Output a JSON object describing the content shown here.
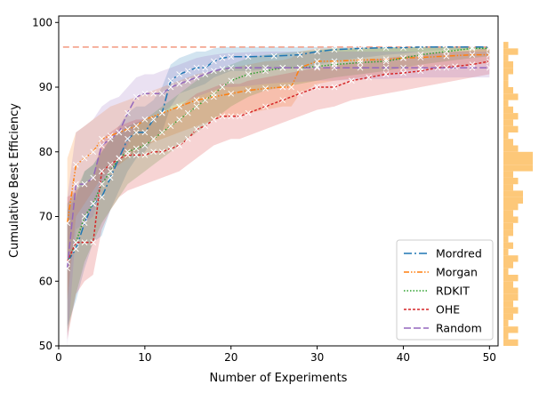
{
  "chart_data": {
    "type": "line",
    "xlabel": "Number of Experiments",
    "ylabel": "Cumulative Best Efficiency",
    "xlim": [
      0,
      51
    ],
    "ylim": [
      50,
      101
    ],
    "xticks": [
      0,
      10,
      20,
      30,
      40,
      50
    ],
    "yticks": [
      50,
      60,
      70,
      80,
      90,
      100
    ],
    "grid": false,
    "legend_position": "bottom-right",
    "reference_line": {
      "y": 96.2,
      "color": "#f4a08a",
      "style": "dashed"
    },
    "series": [
      {
        "name": "Mordred",
        "color": "#1f77b4",
        "dash": "9,3,2,3",
        "x": [
          1,
          2,
          3,
          4,
          5,
          6,
          7,
          8,
          9,
          10,
          11,
          12,
          13,
          14,
          15,
          16,
          17,
          18,
          19,
          20,
          22,
          25,
          28,
          30,
          32,
          35,
          38,
          40,
          42,
          45,
          48,
          50
        ],
        "y": [
          63,
          65,
          69,
          72,
          73,
          76,
          79,
          82,
          83,
          83,
          85,
          86,
          91,
          92,
          92.5,
          93,
          93,
          94,
          94.5,
          94.7,
          94.7,
          94.8,
          95,
          95.5,
          95.8,
          96,
          96.1,
          96.1,
          96.2,
          96.2,
          96.2,
          96.2
        ],
        "lower": [
          53,
          57,
          62,
          66,
          67,
          71,
          74,
          77,
          79,
          80,
          82,
          83,
          87,
          89,
          89.5,
          90,
          90.5,
          91.5,
          92,
          92.5,
          92.5,
          92.8,
          93,
          93.5,
          94,
          94.5,
          95,
          95.2,
          95.5,
          95.7,
          95.8,
          95.8
        ],
        "upper": [
          71,
          73,
          77,
          78,
          80,
          82,
          84,
          86,
          87,
          87,
          88,
          90,
          93.5,
          94.5,
          95,
          95.5,
          95.5,
          96,
          96.2,
          96.2,
          96.2,
          96.2,
          96.2,
          96.2,
          96.2,
          96.2,
          96.2,
          96.2,
          96.2,
          96.2,
          96.2,
          96.2
        ]
      },
      {
        "name": "Morgan",
        "color": "#ff7f0e",
        "dash": "6,2,1.5,2,1.5,2",
        "x": [
          1,
          2,
          3,
          4,
          5,
          6,
          7,
          8,
          9,
          10,
          12,
          14,
          16,
          18,
          20,
          22,
          24,
          26,
          27,
          28,
          30,
          32,
          35,
          38,
          40,
          42,
          45,
          48,
          50
        ],
        "y": [
          69,
          78,
          79,
          80,
          82,
          82.5,
          83,
          83.5,
          84,
          85,
          86,
          87,
          88,
          88.5,
          89,
          89.5,
          89.8,
          90,
          90,
          93,
          94,
          94,
          94.2,
          94.3,
          94.5,
          94.6,
          94.8,
          95,
          95
        ],
        "lower": [
          57,
          70,
          72,
          74,
          76,
          77,
          78,
          79,
          80,
          81,
          82,
          83,
          84,
          85,
          85.5,
          86,
          86.5,
          87,
          87,
          89,
          90.5,
          91,
          91.5,
          92,
          92.5,
          92.8,
          93,
          93.5,
          93.7
        ],
        "upper": [
          79,
          83,
          84,
          85,
          86,
          87,
          87.5,
          88,
          88.5,
          89,
          90,
          91,
          92,
          92.5,
          93,
          93.5,
          94,
          94.2,
          94.5,
          95.5,
          96,
          96,
          96,
          96,
          96.1,
          96.2,
          96.2,
          96.2,
          96.2
        ]
      },
      {
        "name": "RDKIT",
        "color": "#2ca02c",
        "dash": "1.5,2",
        "x": [
          1,
          2,
          3,
          4,
          5,
          6,
          7,
          8,
          9,
          10,
          11,
          12,
          13,
          14,
          15,
          16,
          17,
          18,
          19,
          20,
          22,
          24,
          26,
          28,
          30,
          32,
          35,
          38,
          40,
          42,
          45,
          48,
          50
        ],
        "y": [
          63,
          66,
          70,
          72,
          75,
          77,
          79,
          80,
          80.5,
          81,
          82,
          83,
          84,
          85,
          86,
          87,
          88,
          89,
          90,
          91,
          92,
          92.5,
          93,
          93,
          93.2,
          93.5,
          93.8,
          94,
          94.5,
          95,
          95.5,
          96,
          96
        ],
        "lower": [
          52,
          58,
          63,
          66,
          69,
          71,
          73,
          75,
          76,
          77,
          78,
          79,
          80,
          81,
          82,
          83,
          84,
          85,
          86,
          87,
          88.5,
          89.5,
          90,
          90.5,
          91,
          91.5,
          92,
          92.5,
          93,
          93.5,
          94,
          94.5,
          94.8
        ],
        "upper": [
          72,
          74,
          77,
          78,
          80,
          82,
          83,
          84,
          84.5,
          85,
          86,
          87,
          88,
          89,
          90,
          91,
          92,
          92.5,
          93,
          93.5,
          94.5,
          95,
          95.3,
          95.5,
          95.7,
          96,
          96,
          96.1,
          96.2,
          96.2,
          96.2,
          96.2,
          96.2
        ]
      },
      {
        "name": "OHE",
        "color": "#d62728",
        "dash": "3,2",
        "x": [
          1,
          2,
          3,
          4,
          5,
          6,
          7,
          8,
          9,
          10,
          11,
          12,
          13,
          14,
          15,
          16,
          17,
          18,
          19,
          20,
          21,
          22,
          24,
          26,
          28,
          30,
          32,
          34,
          36,
          38,
          40,
          42,
          44,
          46,
          48,
          50
        ],
        "y": [
          63,
          66,
          66,
          66,
          77,
          78,
          79,
          79.5,
          79.5,
          79.5,
          80,
          80,
          80.5,
          81,
          82,
          83.5,
          84,
          85,
          85.5,
          85.5,
          85.5,
          86,
          87,
          88,
          89,
          90,
          90,
          91,
          91.5,
          92,
          92.2,
          92.5,
          93,
          93.2,
          93.5,
          94
        ],
        "lower": [
          51,
          58,
          60,
          61,
          68,
          71,
          73,
          74,
          74.5,
          75,
          75.5,
          76,
          76.5,
          77,
          78,
          79,
          80,
          81,
          81.5,
          82,
          82,
          82.5,
          83.5,
          84.5,
          85.5,
          86.5,
          87,
          88,
          88.5,
          89,
          89.5,
          90,
          90.5,
          91,
          91.5,
          92
        ],
        "upper": [
          73,
          74,
          75,
          76,
          82,
          83,
          84,
          84.5,
          85,
          85,
          85.5,
          86,
          86.5,
          87,
          88,
          89,
          89.5,
          90,
          90.5,
          90.5,
          90.5,
          91,
          91.5,
          92,
          92.5,
          93,
          93.3,
          93.8,
          94.2,
          94.5,
          94.8,
          95,
          95.3,
          95.5,
          95.7,
          96
        ]
      },
      {
        "name": "Random",
        "color": "#9467bd",
        "dash": "8,3",
        "x": [
          1,
          2,
          3,
          4,
          5,
          6,
          7,
          8,
          9,
          10,
          11,
          12,
          13,
          14,
          15,
          16,
          17,
          18,
          19,
          20,
          22,
          24,
          26,
          28,
          30,
          32,
          35,
          38,
          40,
          42,
          45,
          48,
          50
        ],
        "y": [
          62,
          75,
          75,
          76,
          81,
          82,
          83,
          86,
          88.5,
          89,
          89,
          89,
          90,
          90.5,
          91,
          91.5,
          92,
          92.5,
          92.8,
          93,
          93,
          93,
          93,
          93,
          93,
          93,
          93,
          93,
          93,
          93,
          93,
          93,
          93
        ],
        "lower": [
          50,
          68,
          69,
          70,
          75,
          77,
          78,
          81,
          84,
          85,
          85.5,
          86,
          87,
          87.5,
          88,
          88.5,
          89,
          89.5,
          90,
          90,
          90.2,
          90.5,
          90.7,
          90.8,
          91,
          91,
          91.2,
          91.3,
          91.4,
          91.5,
          91.5,
          91.5,
          91.5
        ],
        "upper": [
          73,
          83,
          84,
          85,
          87,
          88,
          88.5,
          90,
          91.5,
          92,
          92,
          92.5,
          93,
          93.5,
          94,
          94.5,
          94.8,
          95,
          95.2,
          95.3,
          95.4,
          95.5,
          95.5,
          95.5,
          95.5,
          95.5,
          95.5,
          95.5,
          95.5,
          95.5,
          95.5,
          95.5,
          95.5
        ]
      }
    ],
    "side_histogram": {
      "color": "#fdc879",
      "bins_y": [
        50.5,
        51.5,
        52.5,
        53.5,
        54.5,
        55.5,
        56.5,
        57.5,
        58.5,
        59.5,
        60.5,
        61.5,
        62.5,
        63.5,
        64.5,
        65.5,
        66.5,
        67.5,
        68.5,
        69.5,
        70.5,
        71.5,
        72.5,
        73.5,
        74.5,
        75.5,
        76.5,
        77.5,
        78.5,
        79.5,
        80.5,
        81.5,
        82.5,
        83.5,
        84.5,
        85.5,
        86.5,
        87.5,
        88.5,
        89.5,
        90.5,
        91.5,
        92.5,
        93.5,
        94.5,
        95.5,
        96.5
      ],
      "counts": [
        3,
        1,
        3,
        1,
        2,
        3,
        2,
        3,
        3,
        2,
        3,
        1,
        2,
        3,
        1,
        2,
        1,
        2,
        2,
        3,
        2,
        3,
        4,
        4,
        2,
        3,
        2,
        6,
        6,
        6,
        3,
        2,
        1,
        3,
        2,
        3,
        2,
        1,
        3,
        2,
        1,
        1,
        2,
        2,
        1,
        3,
        1
      ]
    }
  }
}
